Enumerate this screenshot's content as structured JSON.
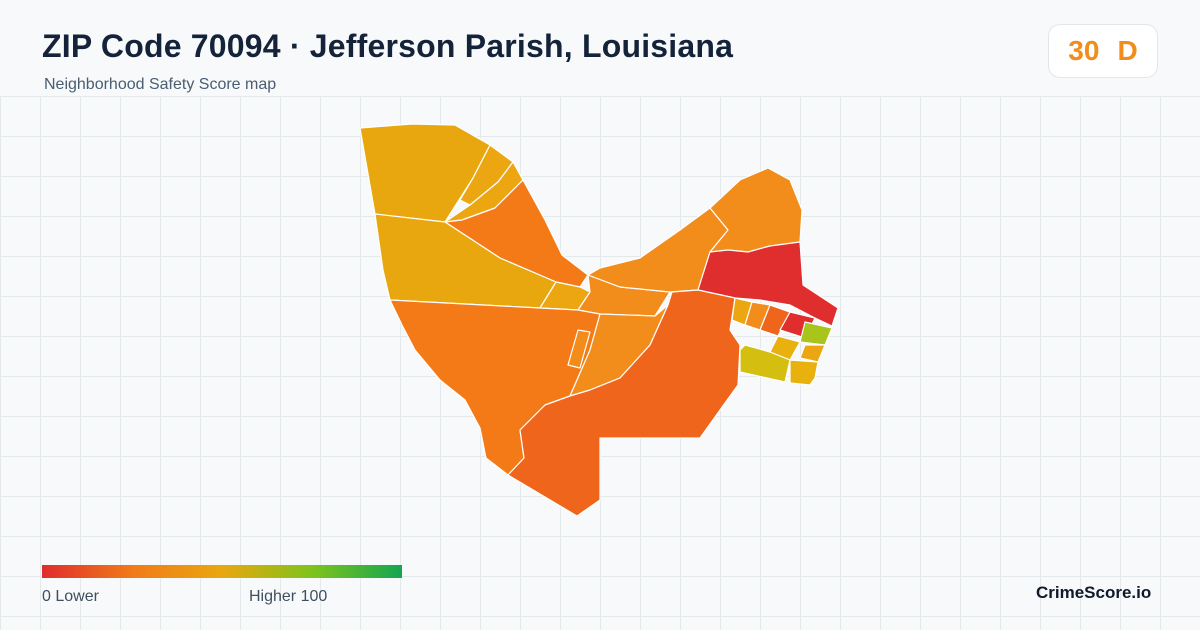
{
  "header": {
    "title": "ZIP Code 70094 · Jefferson Parish, Louisiana",
    "subtitle": "Neighborhood Safety Score map"
  },
  "score_badge": {
    "score": "30",
    "grade": "D",
    "color": "#f28c1a"
  },
  "legend": {
    "low_label": "0  Lower",
    "high_label": "Higher  100",
    "colors": [
      "#e02d2d",
      "#f07a1a",
      "#e9a70f",
      "#7fc31c",
      "#14a551"
    ]
  },
  "brand": "CrimeScore.io",
  "map": {
    "colors": {
      "yellow_orange": "#e9a70f",
      "amber": "#eca612",
      "light_orange": "#f28c1a",
      "orange": "#f47a18",
      "deep_orange": "#ef651c",
      "red": "#e02d2d",
      "olive": "#d4be10",
      "yellow_green": "#a9c41a",
      "gold": "#e8b10e"
    }
  }
}
